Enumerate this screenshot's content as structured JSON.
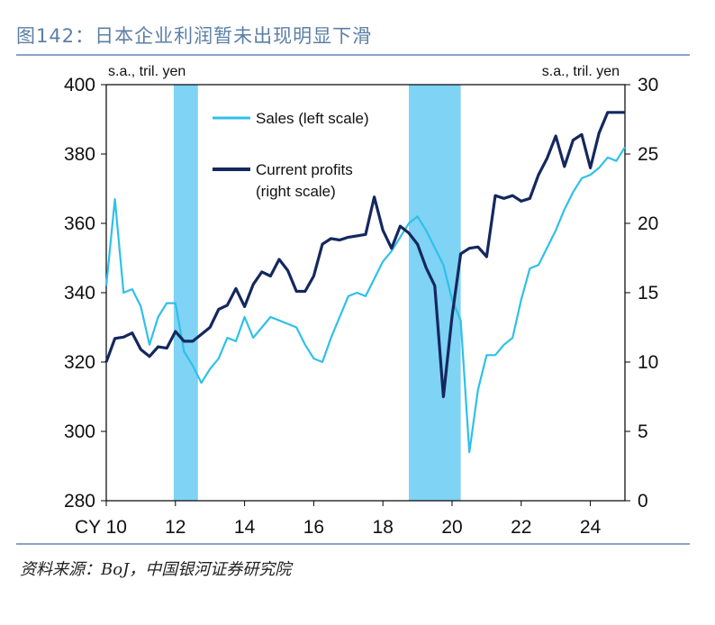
{
  "figure": {
    "title": "图142：日本企业利润暂未出现明显下滑",
    "source": "资料来源：BoJ，中国银河证券研究院"
  },
  "chart_data": {
    "type": "line",
    "left_axis": {
      "unit_label": "s.a., tril. yen",
      "ylim": [
        280,
        400
      ],
      "ticks": [
        "280",
        "300",
        "320",
        "340",
        "360",
        "380",
        "400"
      ]
    },
    "right_axis": {
      "unit_label": "s.a., tril. yen",
      "ylim": [
        0,
        30
      ],
      "ticks": [
        "0",
        "5",
        "10",
        "15",
        "20",
        "25",
        "30"
      ]
    },
    "x_axis": {
      "range": [
        2010,
        2025
      ],
      "tick_values": [
        2010,
        2012,
        2014,
        2016,
        2018,
        2020,
        2022,
        2024
      ],
      "tick_labels": [
        "CY 10",
        "12",
        "14",
        "16",
        "18",
        "20",
        "22",
        "24"
      ]
    },
    "shaded_periods": [
      [
        2011.95,
        2012.65
      ],
      [
        2018.75,
        2020.25
      ]
    ],
    "colors": {
      "sales": "#2fc0ea",
      "profits": "#14285e",
      "shade": "#7fd3f4"
    },
    "series": [
      {
        "name": "Sales (left scale)",
        "axis": "left",
        "x": [
          2010.0,
          2010.25,
          2010.5,
          2010.75,
          2011.0,
          2011.25,
          2011.5,
          2011.75,
          2012.0,
          2012.25,
          2012.5,
          2012.75,
          2013.0,
          2013.25,
          2013.5,
          2013.75,
          2014.0,
          2014.25,
          2014.5,
          2014.75,
          2015.0,
          2015.25,
          2015.5,
          2015.75,
          2016.0,
          2016.25,
          2016.5,
          2016.75,
          2017.0,
          2017.25,
          2017.5,
          2017.75,
          2018.0,
          2018.25,
          2018.5,
          2018.75,
          2019.0,
          2019.25,
          2019.5,
          2019.75,
          2020.0,
          2020.25,
          2020.5,
          2020.75,
          2021.0,
          2021.25,
          2021.5,
          2021.75,
          2022.0,
          2022.25,
          2022.5,
          2022.75,
          2023.0,
          2023.25,
          2023.5,
          2023.75,
          2024.0,
          2024.25,
          2024.5,
          2024.75,
          2025.0
        ],
        "values": [
          342,
          367,
          340,
          341,
          336,
          325,
          333,
          337,
          337,
          323,
          319,
          314,
          318,
          321,
          327,
          326,
          333,
          327,
          330,
          333,
          332,
          331,
          330,
          325,
          321,
          320,
          327,
          333,
          339,
          340,
          339,
          344,
          349,
          352,
          356,
          360,
          362,
          358,
          353,
          348,
          338,
          332,
          294,
          312,
          322,
          322,
          325,
          327,
          338,
          347,
          348,
          353,
          358,
          364,
          369,
          373,
          374,
          376,
          379,
          378,
          382
        ]
      },
      {
        "name": "Current profits (right scale)",
        "axis": "right",
        "x": [
          2010.0,
          2010.25,
          2010.5,
          2010.75,
          2011.0,
          2011.25,
          2011.5,
          2011.75,
          2012.0,
          2012.25,
          2012.5,
          2012.75,
          2013.0,
          2013.25,
          2013.5,
          2013.75,
          2014.0,
          2014.25,
          2014.5,
          2014.75,
          2015.0,
          2015.25,
          2015.5,
          2015.75,
          2016.0,
          2016.25,
          2016.5,
          2016.75,
          2017.0,
          2017.25,
          2017.5,
          2017.75,
          2018.0,
          2018.25,
          2018.5,
          2018.75,
          2019.0,
          2019.25,
          2019.5,
          2019.75,
          2020.0,
          2020.25,
          2020.5,
          2020.75,
          2021.0,
          2021.25,
          2021.5,
          2021.75,
          2022.0,
          2022.25,
          2022.5,
          2022.75,
          2023.0,
          2023.25,
          2023.5,
          2023.75,
          2024.0,
          2024.25,
          2024.5,
          2024.75,
          2025.0
        ],
        "values": [
          10.0,
          11.7,
          11.8,
          12.1,
          10.9,
          10.4,
          11.1,
          11.0,
          12.2,
          11.5,
          11.5,
          12.0,
          12.5,
          13.8,
          14.1,
          15.3,
          14.0,
          15.6,
          16.5,
          16.2,
          17.4,
          16.6,
          15.1,
          15.1,
          16.2,
          18.5,
          18.9,
          18.8,
          19.0,
          19.1,
          19.2,
          21.9,
          19.5,
          18.2,
          19.8,
          19.3,
          18.5,
          16.8,
          15.5,
          7.5,
          13.3,
          17.8,
          18.2,
          18.3,
          17.6,
          22.0,
          21.8,
          22.0,
          21.6,
          21.8,
          23.5,
          24.7,
          26.3,
          24.1,
          26.0,
          26.4,
          24.0,
          26.5,
          28.0,
          28.0,
          28.0
        ]
      }
    ],
    "legend": {
      "entries": [
        "Sales (left scale)",
        "Current profits",
        "(right scale)"
      ],
      "placement": "top-left inside plot"
    }
  }
}
